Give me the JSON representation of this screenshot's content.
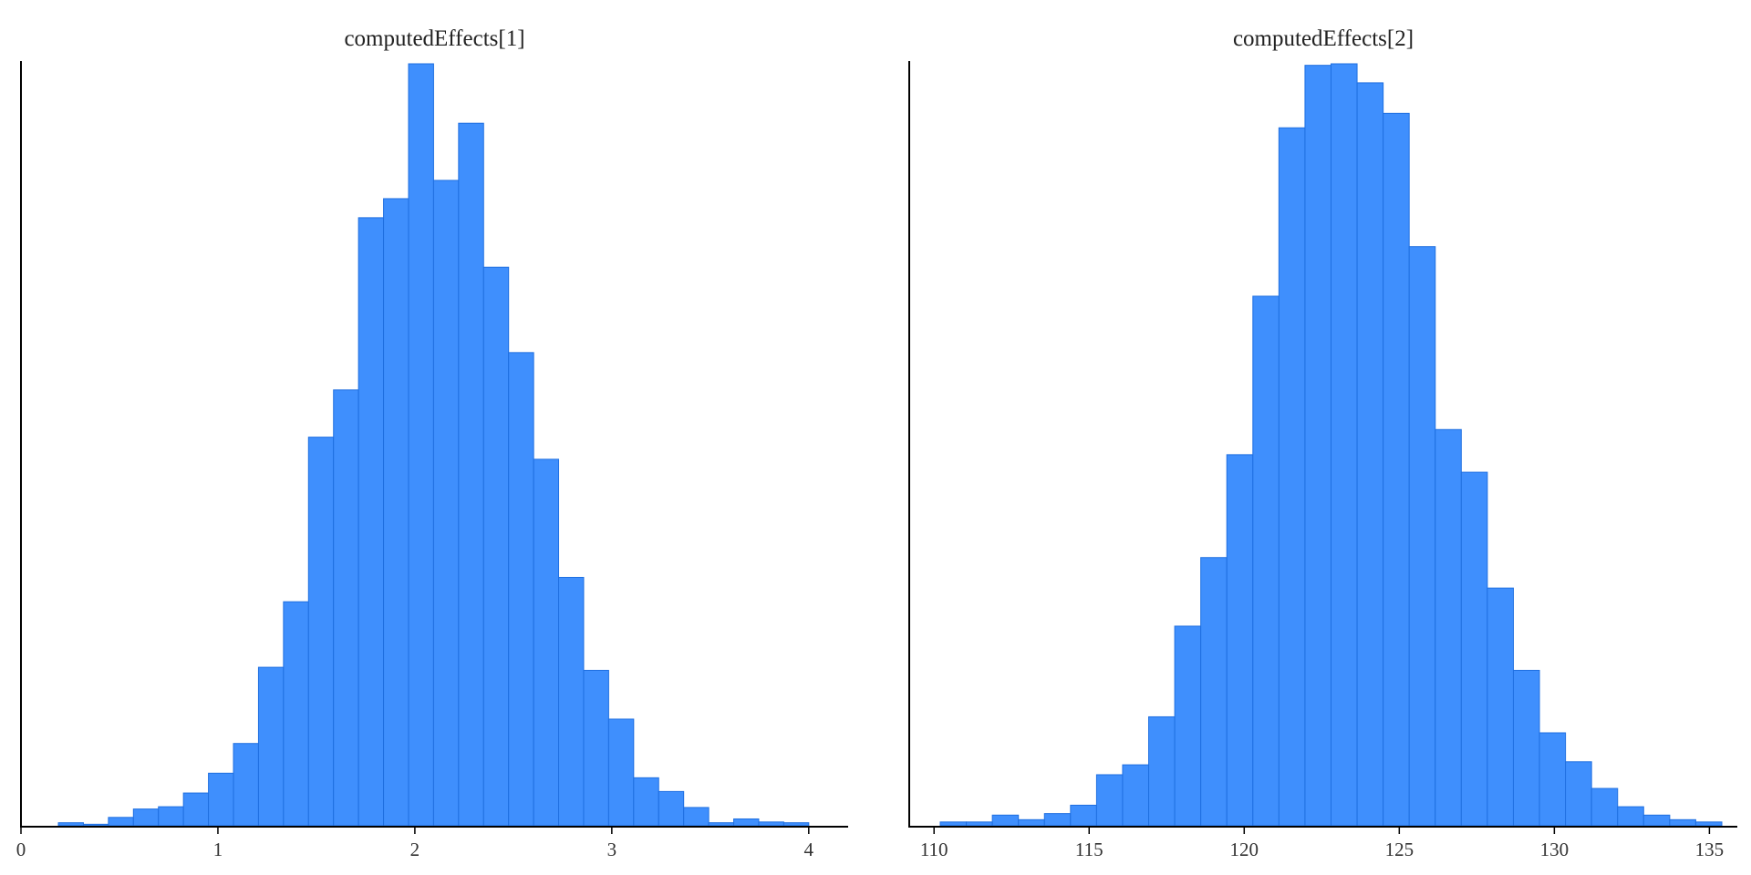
{
  "colors": {
    "bar_fill": "#3f8ffd",
    "bar_stroke": "#1f6fe0",
    "axis": "#000000",
    "background": "#ffffff"
  },
  "chart_data": [
    {
      "type": "bar",
      "title": "computedEffects[1]",
      "xlabel": "",
      "ylabel": "",
      "xlim": [
        0,
        4.2
      ],
      "ylim": [
        0,
        1000
      ],
      "xticks": [
        0,
        1,
        2,
        3,
        4
      ],
      "tick_labels": [
        "0",
        "1",
        "2",
        "3",
        "4"
      ],
      "grid": false,
      "bin_edges": [
        0.19,
        0.317,
        0.444,
        0.571,
        0.698,
        0.825,
        0.952,
        1.079,
        1.206,
        1.333,
        1.46,
        1.587,
        1.714,
        1.841,
        1.968,
        2.095,
        2.222,
        2.349,
        2.476,
        2.603,
        2.73,
        2.857,
        2.984,
        3.111,
        3.238,
        3.365,
        3.492,
        3.619,
        3.746,
        3.873,
        4.0
      ],
      "values": [
        4,
        2,
        11,
        22,
        25,
        43,
        69,
        108,
        208,
        294,
        510,
        572,
        798,
        823,
        1000,
        847,
        922,
        733,
        621,
        481,
        326,
        204,
        140,
        63,
        45,
        24,
        4,
        9,
        5,
        4
      ]
    },
    {
      "type": "bar",
      "title": "computedEffects[2]",
      "xlabel": "",
      "ylabel": "",
      "xlim": [
        109.2,
        135.9
      ],
      "ylim": [
        0,
        1000
      ],
      "xticks": [
        110,
        115,
        120,
        125,
        130,
        135
      ],
      "tick_labels": [
        "110",
        "115",
        "120",
        "125",
        "130",
        "135"
      ],
      "grid": false,
      "bin_edges": [
        110.2,
        111.04,
        111.88,
        112.72,
        113.56,
        114.4,
        115.24,
        116.08,
        116.92,
        117.76,
        118.6,
        119.44,
        120.28,
        121.12,
        121.96,
        122.8,
        123.64,
        124.48,
        125.32,
        126.16,
        127.0,
        127.84,
        128.68,
        129.52,
        130.36,
        131.2,
        132.04,
        132.88,
        133.72,
        134.56,
        135.4
      ],
      "values": [
        5,
        5,
        14,
        8,
        16,
        27,
        67,
        80,
        143,
        262,
        352,
        487,
        695,
        916,
        998,
        1000,
        975,
        935,
        760,
        520,
        464,
        312,
        204,
        122,
        84,
        49,
        25,
        14,
        8,
        5
      ]
    }
  ]
}
